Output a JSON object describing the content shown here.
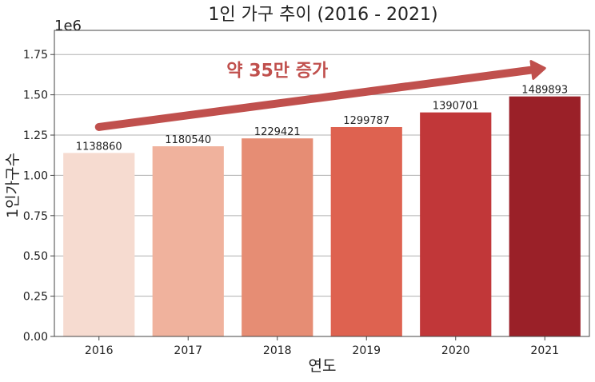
{
  "chart_data": {
    "type": "bar",
    "title": "1인 가구 추이 (2016 - 2021)",
    "xlabel": "연도",
    "ylabel": "1인가구수",
    "categories": [
      "2016",
      "2017",
      "2018",
      "2019",
      "2020",
      "2021"
    ],
    "values": [
      1138860,
      1180540,
      1229421,
      1299787,
      1390701,
      1489893
    ],
    "data_labels": [
      "1138860",
      "1180540",
      "1229421",
      "1299787",
      "1390701",
      "1489893"
    ],
    "ylim": [
      0,
      1900000
    ],
    "yticks": [
      0,
      250000,
      500000,
      750000,
      1000000,
      1250000,
      1500000,
      1750000
    ],
    "ytick_labels": [
      "0.00",
      "0.25",
      "0.50",
      "0.75",
      "1.00",
      "1.25",
      "1.50",
      "1.75"
    ],
    "y_offset_label": "1e6",
    "grid": "horizontal",
    "bar_colors": [
      "#f6dbd0",
      "#f0b29d",
      "#e68d74",
      "#de6250",
      "#c13739",
      "#9a2028"
    ],
    "annotation": {
      "text": "약 35만 증가",
      "color": "#c0504d",
      "arrow_from": {
        "category": "2016",
        "value": 1300000
      },
      "arrow_to": {
        "category": "2021",
        "value": 1665000
      }
    }
  }
}
